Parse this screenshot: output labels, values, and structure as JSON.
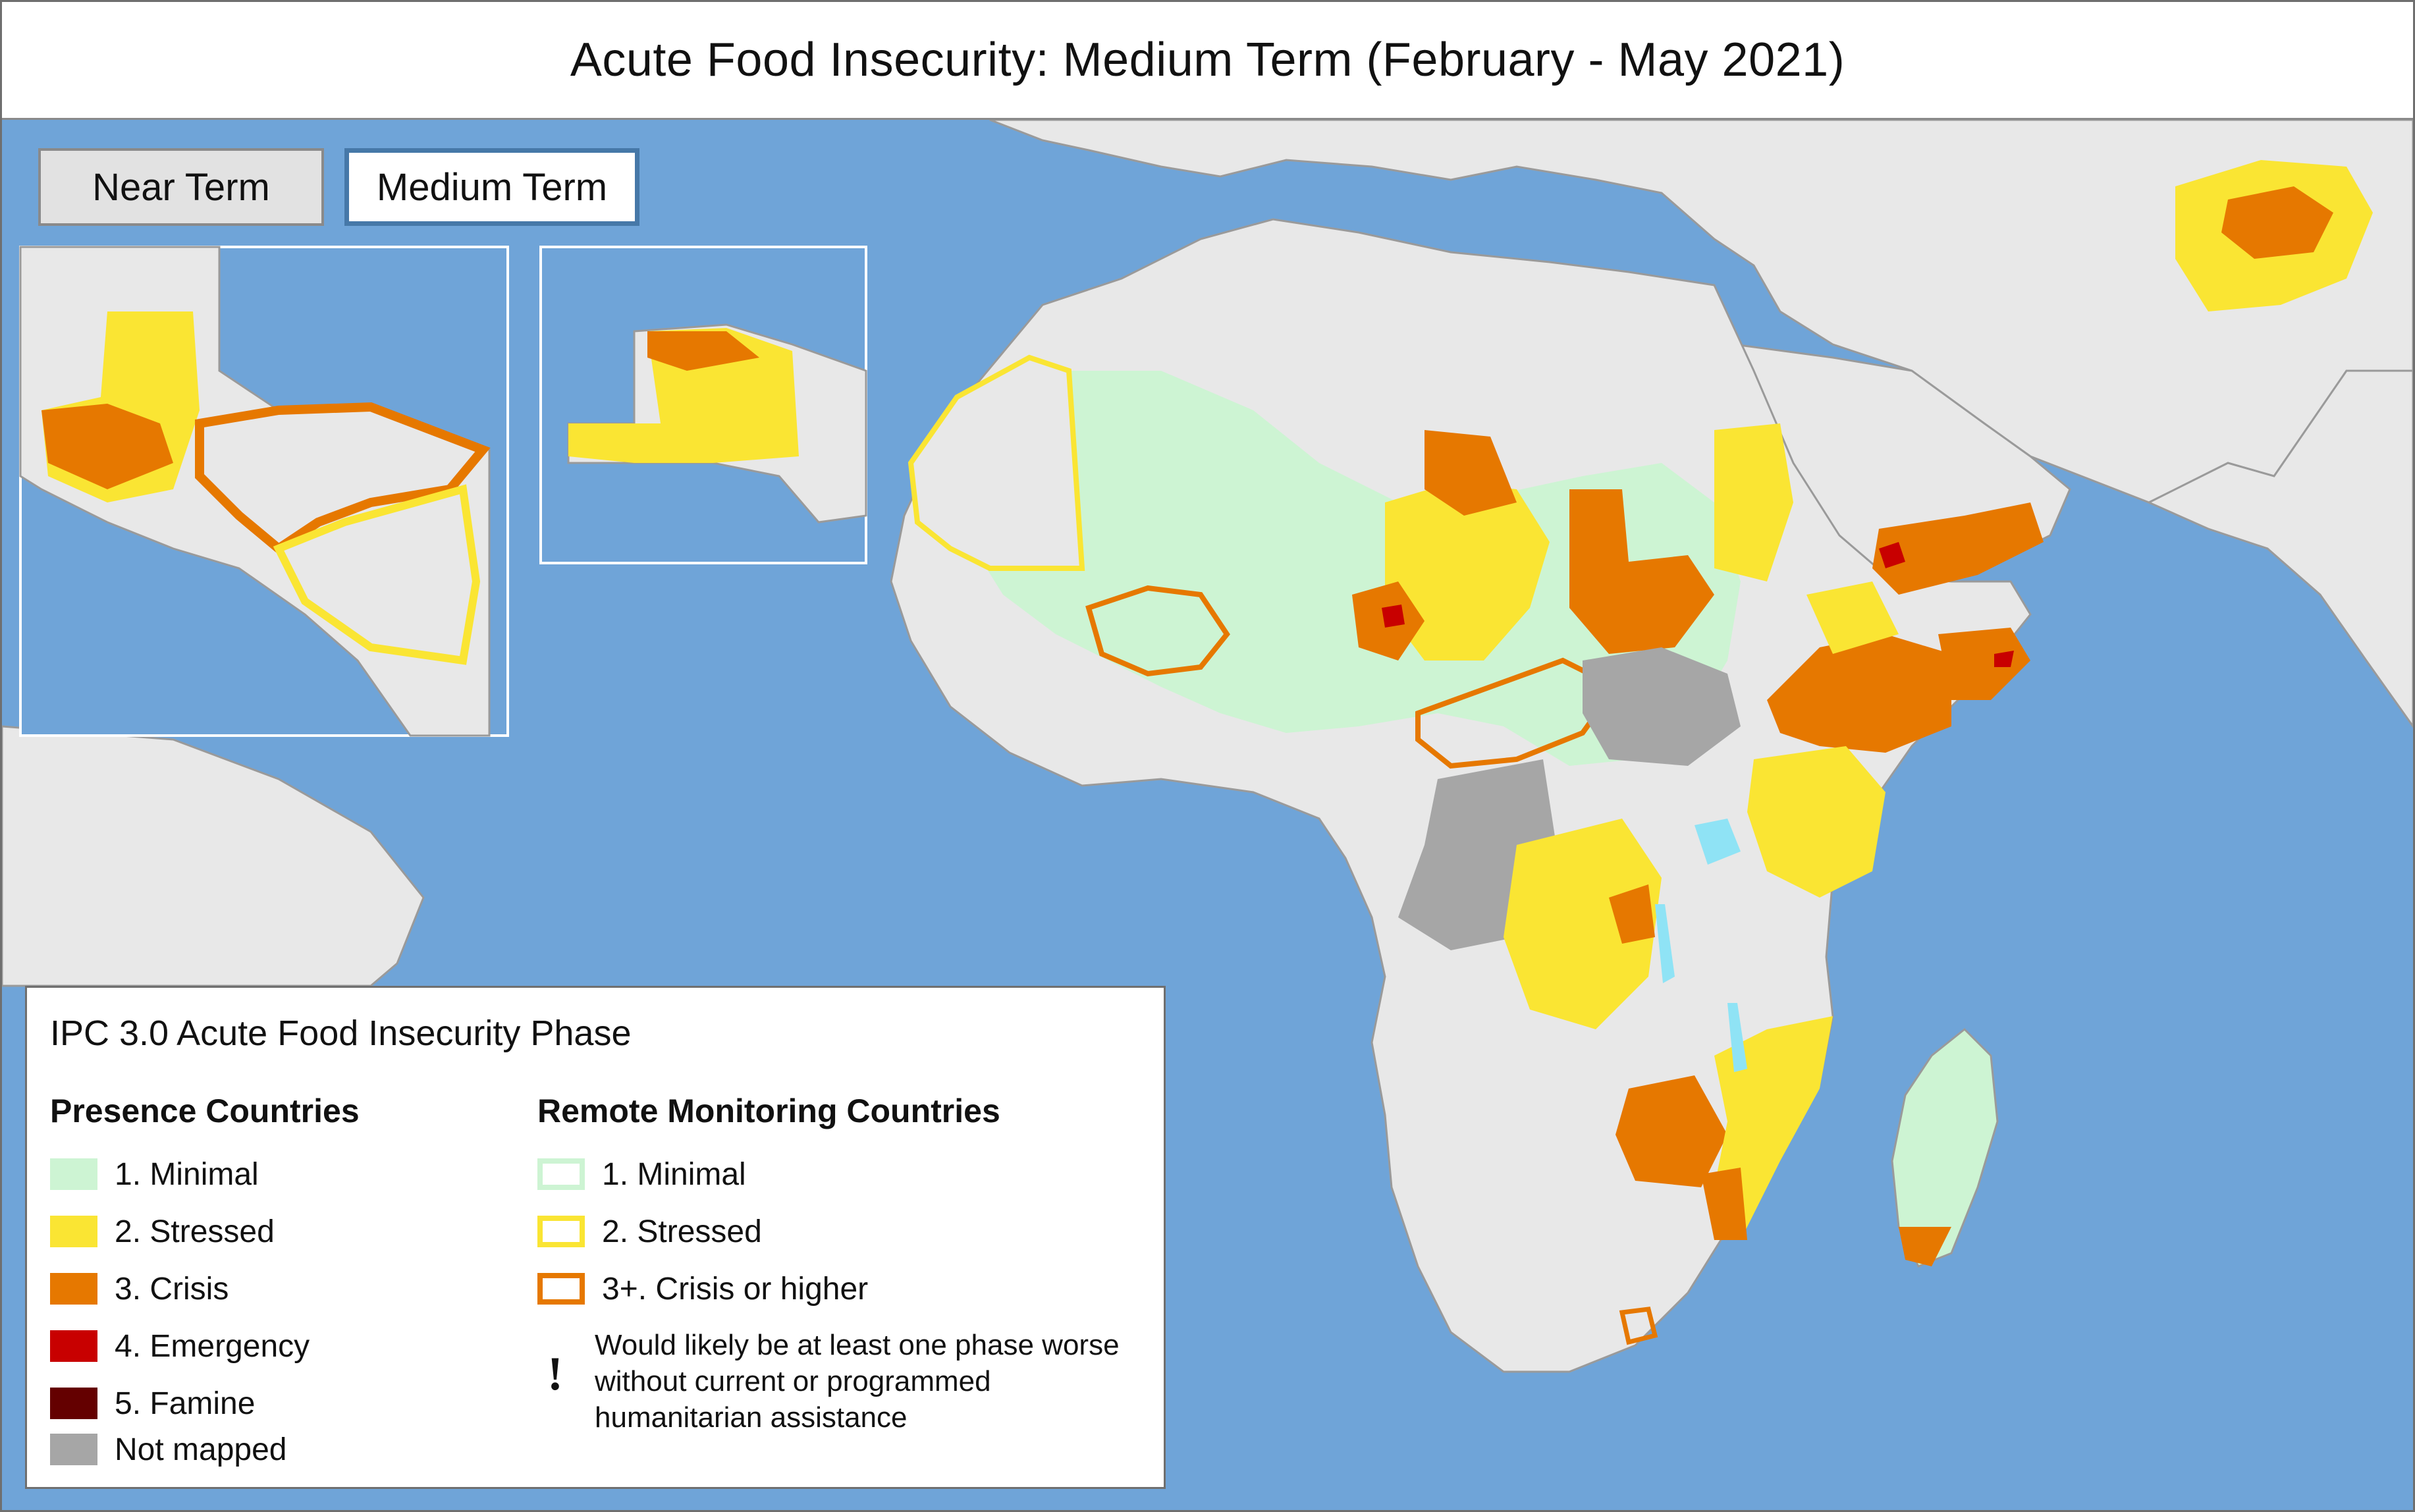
{
  "title": "Acute Food Insecurity: Medium Term (February - May 2021)",
  "tabs": [
    {
      "label": "Near Term",
      "selected": false
    },
    {
      "label": "Medium Term",
      "selected": true
    }
  ],
  "colors": {
    "ocean": "#6fa4d8",
    "land": "#e8e8e8",
    "border": "#9a9a9a",
    "phase1": "#cdf4d3",
    "phase2": "#fae533",
    "phase3": "#e67800",
    "phase4": "#c80000",
    "phase5": "#640000",
    "not_mapped": "#a6a6a6",
    "water": "#8fe3f5"
  },
  "legend": {
    "title": "IPC 3.0 Acute Food Insecurity Phase",
    "presence_heading": "Presence Countries",
    "remote_heading": "Remote Monitoring Countries",
    "presence_items": [
      {
        "label": "1. Minimal",
        "color": "#cdf4d3"
      },
      {
        "label": "2. Stressed",
        "color": "#fae533"
      },
      {
        "label": "3. Crisis",
        "color": "#e67800"
      },
      {
        "label": "4. Emergency",
        "color": "#c80000"
      },
      {
        "label": "5. Famine",
        "color": "#640000"
      },
      {
        "label": "Not mapped",
        "color": "#a6a6a6"
      }
    ],
    "remote_items": [
      {
        "label": "1. Minimal",
        "color": "#cdf4d3"
      },
      {
        "label": "2. Stressed",
        "color": "#fae533"
      },
      {
        "label": "3+. Crisis or higher",
        "color": "#e67800"
      }
    ],
    "assistance_symbol": "!",
    "assistance_note": "Would likely be at least one phase worse without current or programmed humanitarian assistance"
  }
}
